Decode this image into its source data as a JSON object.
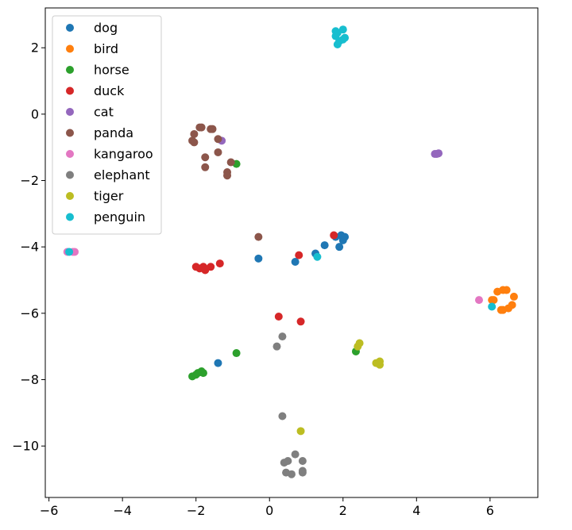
{
  "chart_data": {
    "type": "scatter",
    "title": "",
    "xlabel": "",
    "ylabel": "",
    "xlim": [
      -6.1,
      7.3
    ],
    "ylim": [
      -11.55,
      3.2
    ],
    "x_ticks": [
      -6,
      -4,
      -2,
      0,
      2,
      4,
      6
    ],
    "y_ticks": [
      2,
      0,
      -2,
      -4,
      -6,
      -8,
      -10
    ],
    "x_tick_labels": [
      "−6",
      "−4",
      "−2",
      "0",
      "2",
      "4",
      "6"
    ],
    "y_tick_labels": [
      "2",
      "0",
      "−2",
      "−4",
      "−6",
      "−8",
      "−10"
    ],
    "grid": false,
    "legend_position": "top-left",
    "series": [
      {
        "name": "dog",
        "color": "#1f77b4",
        "points": [
          [
            -0.3,
            -4.35
          ],
          [
            0.7,
            -4.45
          ],
          [
            1.25,
            -4.2
          ],
          [
            1.5,
            -3.95
          ],
          [
            1.8,
            -3.7
          ],
          [
            1.9,
            -4.0
          ],
          [
            1.95,
            -3.65
          ],
          [
            2.0,
            -3.8
          ],
          [
            2.05,
            -3.7
          ],
          [
            -1.4,
            -7.5
          ]
        ]
      },
      {
        "name": "bird",
        "color": "#ff7f0e",
        "points": [
          [
            6.1,
            -5.6
          ],
          [
            6.2,
            -5.35
          ],
          [
            6.35,
            -5.3
          ],
          [
            6.45,
            -5.3
          ],
          [
            6.65,
            -5.5
          ],
          [
            6.6,
            -5.75
          ],
          [
            6.5,
            -5.85
          ],
          [
            6.35,
            -5.9
          ],
          [
            6.3,
            -5.9
          ],
          [
            6.05,
            -5.6
          ]
        ]
      },
      {
        "name": "horse",
        "color": "#2ca02c",
        "points": [
          [
            -0.9,
            -1.5
          ],
          [
            -0.9,
            -7.2
          ],
          [
            -2.1,
            -7.9
          ],
          [
            -2.0,
            -7.85
          ],
          [
            -1.95,
            -7.8
          ],
          [
            -1.85,
            -7.75
          ],
          [
            -1.8,
            -7.8
          ],
          [
            2.35,
            -7.15
          ]
        ]
      },
      {
        "name": "duck",
        "color": "#d62728",
        "points": [
          [
            -2.0,
            -4.6
          ],
          [
            -1.9,
            -4.65
          ],
          [
            -1.8,
            -4.6
          ],
          [
            -1.75,
            -4.7
          ],
          [
            -1.6,
            -4.6
          ],
          [
            -1.35,
            -4.5
          ],
          [
            0.8,
            -4.25
          ],
          [
            1.75,
            -3.65
          ],
          [
            0.25,
            -6.1
          ],
          [
            0.85,
            -6.25
          ]
        ]
      },
      {
        "name": "cat",
        "color": "#9467bd",
        "points": [
          [
            4.5,
            -1.2
          ],
          [
            4.55,
            -1.2
          ],
          [
            4.6,
            -1.18
          ],
          [
            -1.3,
            -0.8
          ]
        ]
      },
      {
        "name": "panda",
        "color": "#8c564b",
        "points": [
          [
            -2.1,
            -0.8
          ],
          [
            -2.05,
            -0.85
          ],
          [
            -2.05,
            -0.6
          ],
          [
            -1.9,
            -0.4
          ],
          [
            -1.85,
            -0.4
          ],
          [
            -1.6,
            -0.45
          ],
          [
            -1.55,
            -0.45
          ],
          [
            -1.4,
            -0.75
          ],
          [
            -1.4,
            -1.15
          ],
          [
            -1.15,
            -1.75
          ],
          [
            -1.15,
            -1.85
          ],
          [
            -1.05,
            -1.45
          ],
          [
            -1.75,
            -1.3
          ],
          [
            -1.75,
            -1.6
          ],
          [
            -0.3,
            -3.7
          ]
        ]
      },
      {
        "name": "kangaroo",
        "color": "#e377c2",
        "points": [
          [
            -5.5,
            -4.15
          ],
          [
            -5.35,
            -4.15
          ],
          [
            -5.3,
            -4.15
          ],
          [
            5.7,
            -5.6
          ]
        ]
      },
      {
        "name": "elephant",
        "color": "#7f7f7f",
        "points": [
          [
            0.2,
            -7.0
          ],
          [
            0.35,
            -6.7
          ],
          [
            0.35,
            -9.1
          ],
          [
            0.4,
            -10.5
          ],
          [
            0.5,
            -10.45
          ],
          [
            0.7,
            -10.25
          ],
          [
            0.9,
            -10.45
          ],
          [
            0.9,
            -10.75
          ],
          [
            0.9,
            -10.8
          ],
          [
            0.45,
            -10.8
          ],
          [
            0.6,
            -10.85
          ]
        ]
      },
      {
        "name": "tiger",
        "color": "#bcbd22",
        "points": [
          [
            2.4,
            -7.0
          ],
          [
            2.45,
            -6.9
          ],
          [
            2.9,
            -7.5
          ],
          [
            3.0,
            -7.45
          ],
          [
            3.0,
            -7.55
          ],
          [
            0.85,
            -9.55
          ]
        ]
      },
      {
        "name": "penguin",
        "color": "#17becf",
        "points": [
          [
            1.8,
            2.5
          ],
          [
            1.85,
            2.45
          ],
          [
            2.0,
            2.55
          ],
          [
            2.05,
            2.3
          ],
          [
            1.9,
            2.2
          ],
          [
            1.8,
            2.35
          ],
          [
            1.85,
            2.1
          ],
          [
            2.0,
            2.25
          ],
          [
            1.3,
            -4.3
          ],
          [
            -5.45,
            -4.15
          ],
          [
            6.05,
            -5.8
          ]
        ]
      }
    ]
  }
}
